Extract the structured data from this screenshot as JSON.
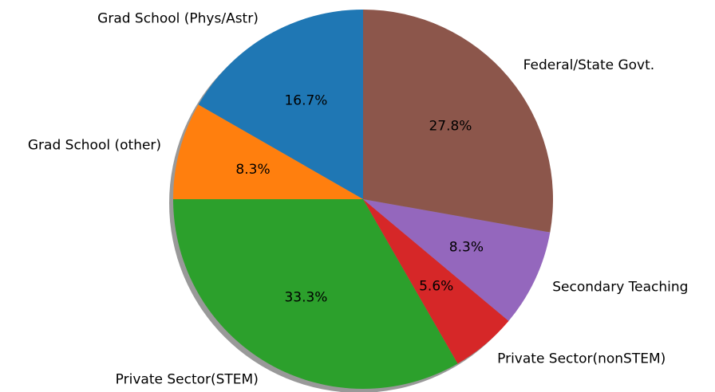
{
  "chart_data": {
    "type": "pie",
    "categories": [
      "Grad School (Phys/Astr)",
      "Grad School (other)",
      "Private Sector(STEM)",
      "Private Sector(nonSTEM)",
      "Secondary Teaching",
      "Federal/State Govt."
    ],
    "values": [
      16.7,
      8.3,
      33.3,
      5.6,
      8.3,
      27.8
    ],
    "value_labels": [
      "16.7%",
      "8.3%",
      "33.3%",
      "5.6%",
      "8.3%",
      "27.8%"
    ],
    "colors": [
      "#1f77b4",
      "#ff7f0e",
      "#2ca02c",
      "#d62728",
      "#9467bd",
      "#8c564b"
    ],
    "start_angle": 90,
    "shadow": true
  }
}
